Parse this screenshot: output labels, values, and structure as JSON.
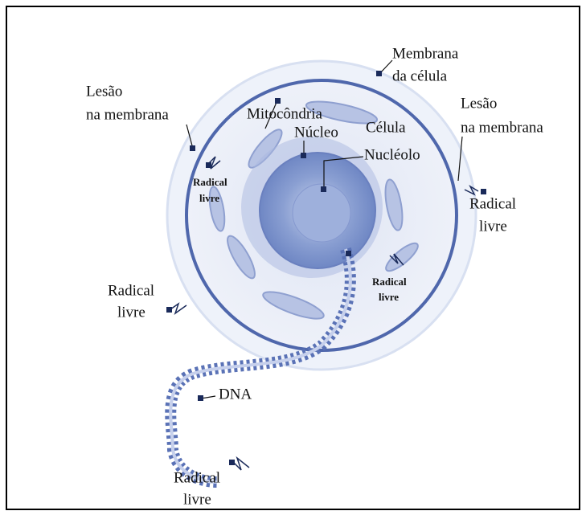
{
  "labels": [
    {
      "lines": [
        "Membrana",
        "da célula"
      ]
    },
    {
      "lines": [
        "Lesão",
        "na membrana"
      ]
    },
    {
      "lines": [
        "Mitocôndria"
      ]
    },
    {
      "lines": [
        "Núcleo"
      ]
    },
    {
      "lines": [
        "Célula"
      ]
    },
    {
      "lines": [
        "Lesão",
        "na membrana"
      ]
    },
    {
      "lines": [
        "Nucléolo"
      ]
    },
    {
      "lines": [
        "Radical",
        "livre"
      ]
    },
    {
      "lines": [
        "Radical",
        "livre"
      ]
    },
    {
      "lines": [
        "Radical",
        "livre"
      ]
    },
    {
      "lines": [
        "Radical",
        "livre"
      ]
    },
    {
      "lines": [
        "DNA"
      ]
    },
    {
      "lines": [
        "Radical",
        "livre"
      ]
    }
  ]
}
